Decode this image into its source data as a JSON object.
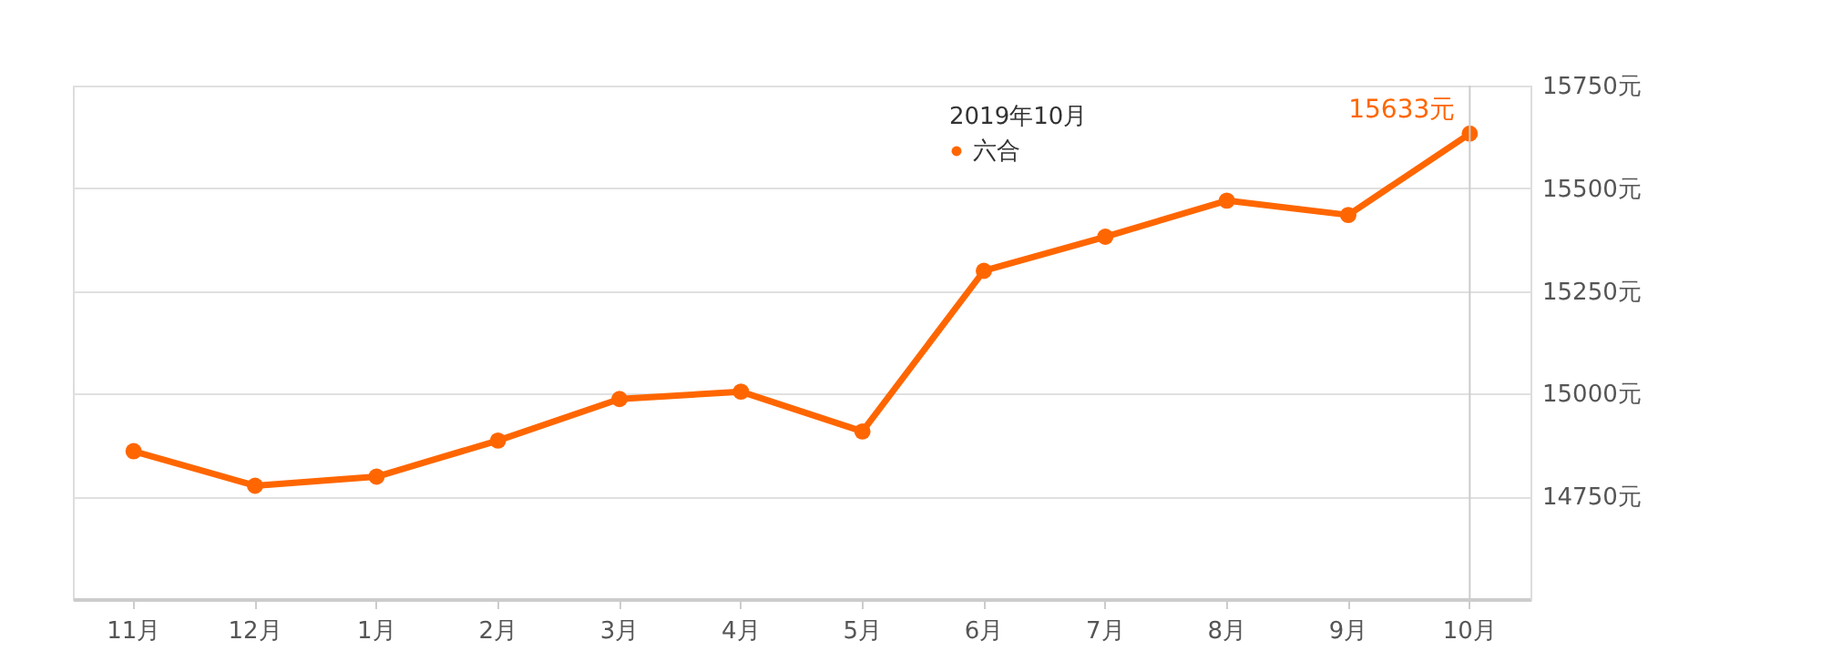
{
  "chart_data": {
    "type": "line",
    "categories": [
      "11月",
      "12月",
      "1月",
      "2月",
      "3月",
      "4月",
      "5月",
      "6月",
      "7月",
      "8月",
      "9月",
      "10月"
    ],
    "series": [
      {
        "name": "六合",
        "color": "#ff6600",
        "values": [
          14860,
          14776,
          14798,
          14886,
          14987,
          15005,
          14908,
          15299,
          15382,
          15470,
          15435,
          15633
        ],
        "value_labels": [
          null,
          null,
          null,
          null,
          null,
          null,
          null,
          null,
          null,
          null,
          null,
          "15633元"
        ]
      }
    ],
    "ylim": [
      14500,
      15750
    ],
    "yticks": [
      {
        "value": 14750,
        "label": "14750元"
      },
      {
        "value": 15000,
        "label": "15000元"
      },
      {
        "value": 15250,
        "label": "15250元"
      },
      {
        "value": 15500,
        "label": "15500元"
      },
      {
        "value": 15750,
        "label": "15750元"
      }
    ],
    "annotations": [
      "2019年10月"
    ],
    "ref_lines": [
      {
        "axis": "x",
        "value": "10月",
        "color": "#cccccc"
      }
    ],
    "grid": "y",
    "legend": "top",
    "marker": "circle",
    "line_style": "solid"
  }
}
